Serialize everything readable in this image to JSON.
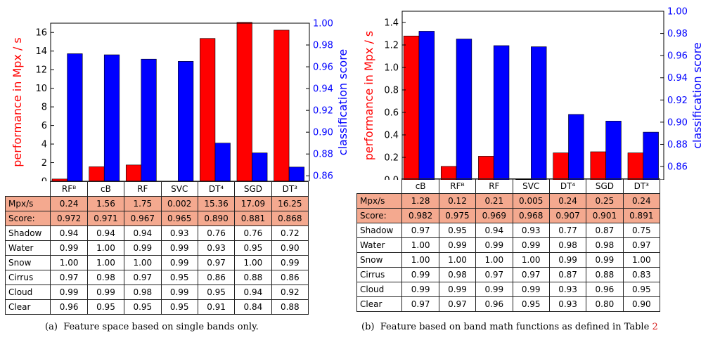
{
  "chart_data": [
    {
      "type": "bar",
      "categories": [
        "RFᴮ",
        "cB",
        "RF",
        "SVC",
        "DT⁴",
        "SGD",
        "DT³"
      ],
      "series": [
        {
          "name": "",
          "axis": "left",
          "color": "#ff0000",
          "values": [
            0.24,
            1.56,
            1.75,
            0.002,
            15.36,
            17.09,
            16.25
          ]
        },
        {
          "name": "",
          "axis": "right",
          "color": "#0000ff",
          "values": [
            0.972,
            0.971,
            0.967,
            0.965,
            0.89,
            0.881,
            0.868
          ]
        }
      ],
      "ylabel": "performance in Mpx / s",
      "ylabel_color": "#ff0000",
      "ylim": [
        0,
        17
      ],
      "yticks": [
        "0",
        "2",
        "4",
        "6",
        "8",
        "10",
        "12",
        "14",
        "16"
      ],
      "y2label": "classification score",
      "y2label_color": "#0000ff",
      "y2lim": [
        0.855,
        1.0
      ],
      "y2ticks": [
        "0.86",
        "0.88",
        "0.90",
        "0.92",
        "0.94",
        "0.96",
        "0.98",
        "1.00"
      ],
      "grid": false
    },
    {
      "type": "bar",
      "categories": [
        "cB",
        "RFᴮ",
        "RF",
        "SVC",
        "DT⁴",
        "SGD",
        "DT³"
      ],
      "series": [
        {
          "name": "",
          "axis": "left",
          "color": "#ff0000",
          "values": [
            1.28,
            0.12,
            0.21,
            0.005,
            0.24,
            0.25,
            0.24
          ]
        },
        {
          "name": "",
          "axis": "right",
          "color": "#0000ff",
          "values": [
            0.982,
            0.975,
            0.969,
            0.968,
            0.907,
            0.901,
            0.891
          ]
        }
      ],
      "ylabel": "performance in Mpx / s",
      "ylabel_color": "#ff0000",
      "ylim": [
        0,
        1.5
      ],
      "yticks": [
        "0.0",
        "0.2",
        "0.4",
        "0.6",
        "0.8",
        "1.0",
        "1.2",
        "1.4"
      ],
      "y2label": "classification score",
      "y2label_color": "#0000ff",
      "y2lim": [
        0.848,
        1.0
      ],
      "y2ticks": [
        "0.86",
        "0.88",
        "0.90",
        "0.92",
        "0.94",
        "0.96",
        "0.98",
        "1.00"
      ],
      "grid": false
    }
  ],
  "tables": [
    {
      "highlight_color": "#f4a98f",
      "rows": [
        {
          "label": "Mpx/s",
          "highlight": true,
          "values": [
            "0.24",
            "1.56",
            "1.75",
            "0.002",
            "15.36",
            "17.09",
            "16.25"
          ]
        },
        {
          "label": "Score:",
          "highlight": true,
          "values": [
            "0.972",
            "0.971",
            "0.967",
            "0.965",
            "0.890",
            "0.881",
            "0.868"
          ]
        },
        {
          "label": "Shadow",
          "highlight": false,
          "values": [
            "0.94",
            "0.94",
            "0.94",
            "0.93",
            "0.76",
            "0.76",
            "0.72"
          ]
        },
        {
          "label": "Water",
          "highlight": false,
          "values": [
            "0.99",
            "1.00",
            "0.99",
            "0.99",
            "0.93",
            "0.95",
            "0.90"
          ]
        },
        {
          "label": "Snow",
          "highlight": false,
          "values": [
            "1.00",
            "1.00",
            "1.00",
            "0.99",
            "0.97",
            "1.00",
            "0.99"
          ]
        },
        {
          "label": "Cirrus",
          "highlight": false,
          "values": [
            "0.97",
            "0.98",
            "0.97",
            "0.95",
            "0.86",
            "0.88",
            "0.86"
          ]
        },
        {
          "label": "Cloud",
          "highlight": false,
          "values": [
            "0.99",
            "0.99",
            "0.98",
            "0.99",
            "0.95",
            "0.94",
            "0.92"
          ]
        },
        {
          "label": "Clear",
          "highlight": false,
          "values": [
            "0.96",
            "0.95",
            "0.95",
            "0.95",
            "0.91",
            "0.84",
            "0.88"
          ]
        }
      ]
    },
    {
      "highlight_color": "#f4a98f",
      "rows": [
        {
          "label": "Mpx/s",
          "highlight": true,
          "values": [
            "1.28",
            "0.12",
            "0.21",
            "0.005",
            "0.24",
            "0.25",
            "0.24"
          ]
        },
        {
          "label": "Score:",
          "highlight": true,
          "values": [
            "0.982",
            "0.975",
            "0.969",
            "0.968",
            "0.907",
            "0.901",
            "0.891"
          ]
        },
        {
          "label": "Shadow",
          "highlight": false,
          "values": [
            "0.97",
            "0.95",
            "0.94",
            "0.93",
            "0.77",
            "0.87",
            "0.75"
          ]
        },
        {
          "label": "Water",
          "highlight": false,
          "values": [
            "1.00",
            "0.99",
            "0.99",
            "0.99",
            "0.98",
            "0.98",
            "0.97"
          ]
        },
        {
          "label": "Snow",
          "highlight": false,
          "values": [
            "1.00",
            "1.00",
            "1.00",
            "1.00",
            "0.99",
            "0.99",
            "1.00"
          ]
        },
        {
          "label": "Cirrus",
          "highlight": false,
          "values": [
            "0.99",
            "0.98",
            "0.97",
            "0.97",
            "0.87",
            "0.88",
            "0.83"
          ]
        },
        {
          "label": "Cloud",
          "highlight": false,
          "values": [
            "0.99",
            "0.99",
            "0.99",
            "0.99",
            "0.93",
            "0.96",
            "0.95"
          ]
        },
        {
          "label": "Clear",
          "highlight": false,
          "values": [
            "0.97",
            "0.97",
            "0.96",
            "0.95",
            "0.93",
            "0.80",
            "0.90"
          ]
        }
      ]
    }
  ],
  "captions": [
    {
      "label": "(a)",
      "text": "Feature space based on single bands only."
    },
    {
      "label": "(b)",
      "text": "Feature based on band math functions as defined in Table",
      "ref": "2"
    }
  ]
}
